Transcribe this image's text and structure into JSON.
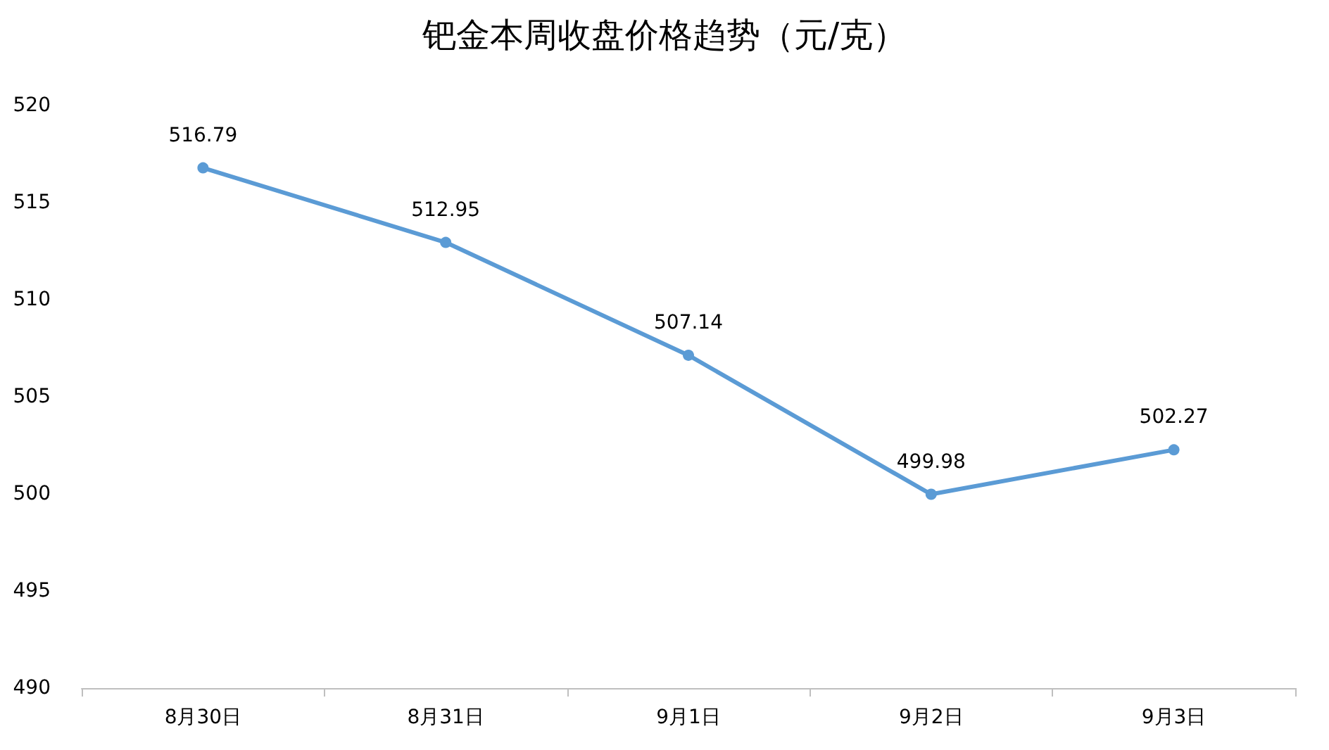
{
  "chart_data": {
    "type": "line",
    "title": "钯金本周收盘价格趋势（元/克）",
    "categories": [
      "8月30日",
      "8月31日",
      "9月1日",
      "9月2日",
      "9月3日"
    ],
    "series": [
      {
        "color": "#5b9bd5",
        "values": [
          516.79,
          512.95,
          507.14,
          499.98,
          502.27
        ]
      }
    ],
    "ylim": [
      490,
      520
    ],
    "yticks": [
      490,
      495,
      500,
      505,
      510,
      515,
      520
    ],
    "grid": false,
    "marker": "circle",
    "line_style": "solid",
    "data_labels": true
  }
}
